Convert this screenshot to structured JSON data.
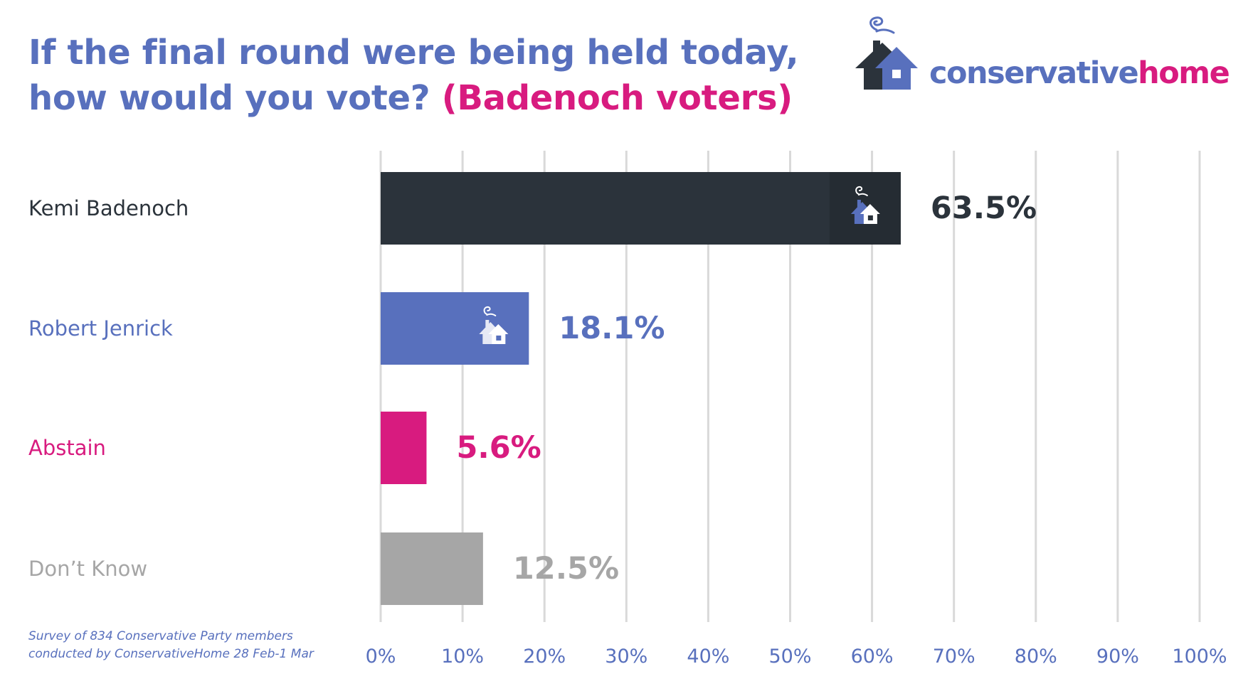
{
  "header": {
    "title_line1": "If the final round were being held today,",
    "title_line2": "how would you vote?",
    "title_highlight": "(Badenoch voters)"
  },
  "logo": {
    "part1": "conservative",
    "part2": "home",
    "icon": "house-with-smoke-icon"
  },
  "footnote": {
    "line1": "Survey of 834 Conservative Party members",
    "line2": "conducted by ConservativeHome 28 Feb-1 Mar"
  },
  "chart_data": {
    "type": "bar",
    "orientation": "horizontal",
    "title": "If the final round were being held today, how would you vote? (Badenoch voters)",
    "categories": [
      "Kemi Badenoch",
      "Robert Jenrick",
      "Abstain",
      "Don’t Know"
    ],
    "values": [
      63.5,
      18.1,
      5.6,
      12.5
    ],
    "value_labels": [
      "63.5%",
      "18.1%",
      "5.6%",
      "12.5%"
    ],
    "colors": [
      "#2b333b",
      "#5870bd",
      "#d81b7f",
      "#a6a6a6"
    ],
    "label_colors": [
      "#2b333b",
      "#5870bd",
      "#d81b7f",
      "#a6a6a6"
    ],
    "bar_icons": [
      "house-with-smoke-icon",
      "house-with-smoke-icon",
      "",
      ""
    ],
    "xlim": [
      0,
      100
    ],
    "xticks": [
      "0%",
      "10%",
      "20%",
      "30%",
      "40%",
      "50%",
      "60%",
      "70%",
      "80%",
      "90%",
      "100%"
    ],
    "grid": true,
    "legend": "none"
  },
  "colors": {
    "blue": "#5870bd",
    "magenta": "#d81b7f",
    "dark": "#2b333b",
    "grey": "#a6a6a6",
    "grid": "#d9d9d9"
  }
}
